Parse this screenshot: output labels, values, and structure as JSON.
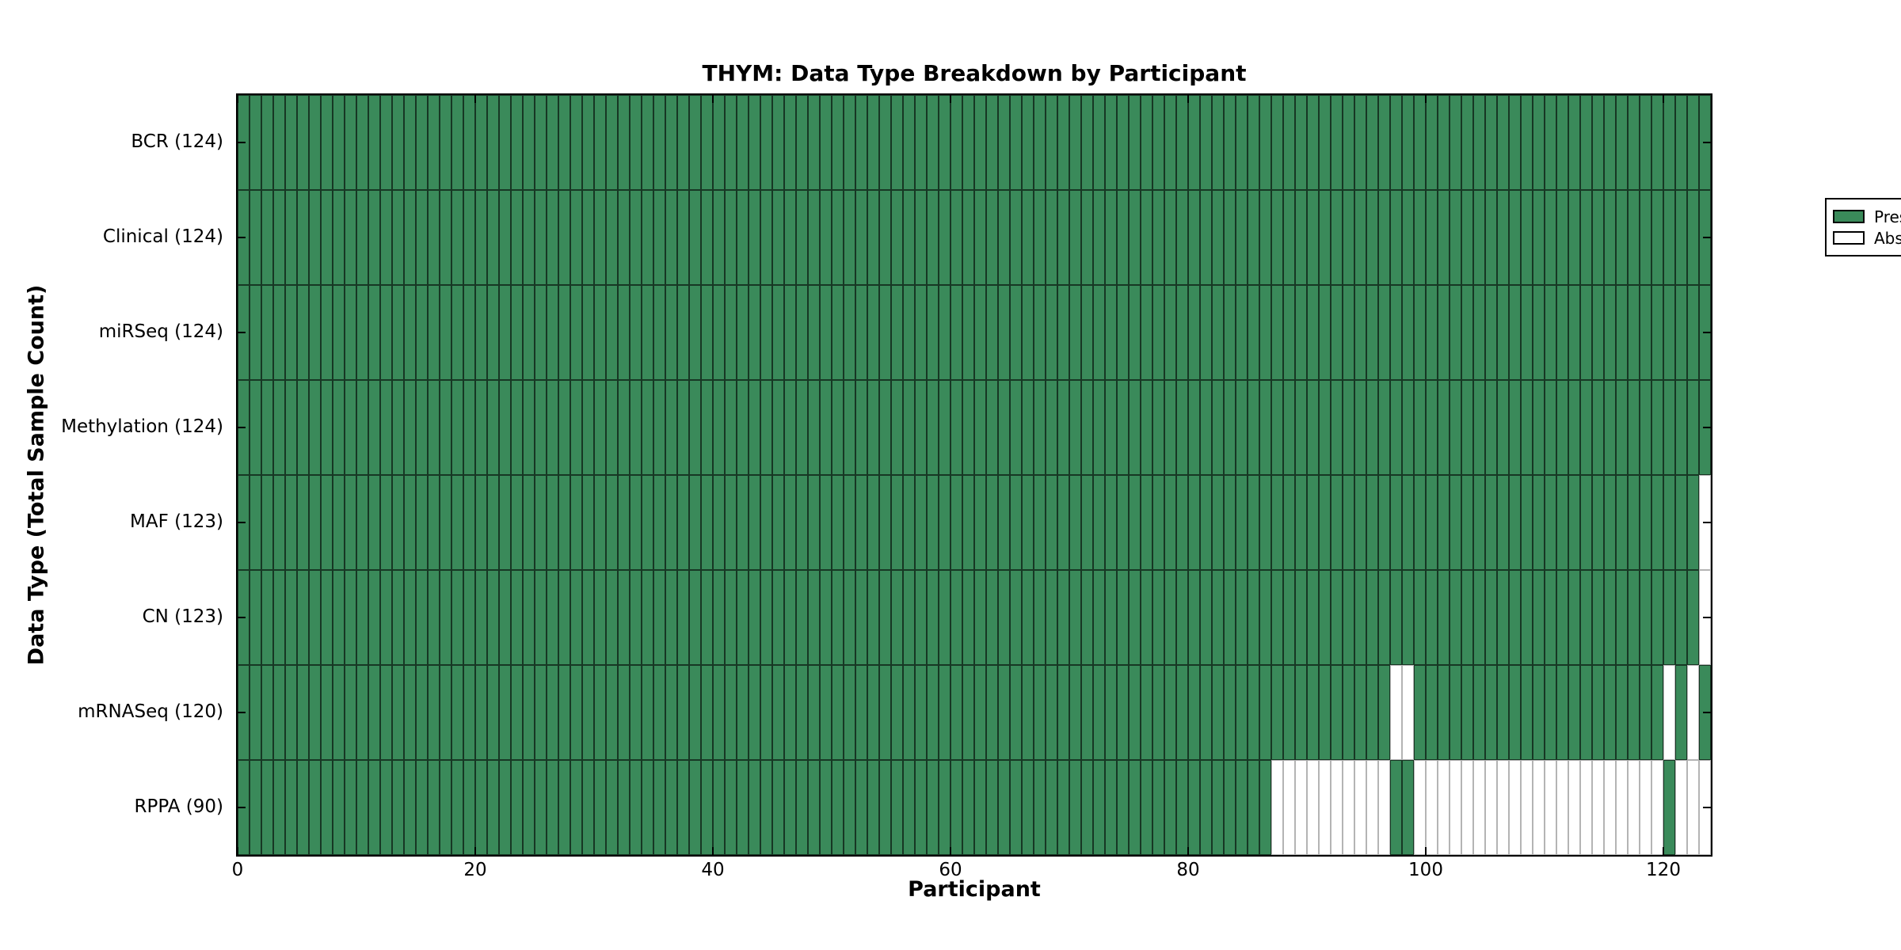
{
  "figure": {
    "background_color": "#ffffff"
  },
  "chart_data": {
    "type": "heatmap",
    "title": "THYM: Data Type Breakdown by Participant",
    "xlabel": "Participant",
    "ylabel": "Data Type (Total Sample Count)",
    "x_ticks": [
      0,
      20,
      40,
      60,
      80,
      100,
      120
    ],
    "xlim": [
      0,
      124
    ],
    "n_participants": 124,
    "grid": false,
    "tick_style": "inward-all-sides",
    "colors": {
      "present_fill": "#3a8a5a",
      "present_edge": "rgba(0,0,0,0.6)",
      "absent_fill": "#ffffff",
      "absent_edge": "#b4b4b4",
      "spine": "#000000"
    },
    "legend": {
      "position": "upper-right",
      "entries": [
        {
          "label": "Present",
          "color": "#3a8a5a"
        },
        {
          "label": "Absent",
          "color": "#ffffff"
        }
      ]
    },
    "rows": [
      {
        "label": "BCR (124)",
        "data_type": "BCR",
        "total_samples": 124,
        "absent_participants": []
      },
      {
        "label": "Clinical (124)",
        "data_type": "Clinical",
        "total_samples": 124,
        "absent_participants": []
      },
      {
        "label": "miRSeq (124)",
        "data_type": "miRSeq",
        "total_samples": 124,
        "absent_participants": []
      },
      {
        "label": "Methylation (124)",
        "data_type": "Methylation",
        "total_samples": 124,
        "absent_participants": []
      },
      {
        "label": "MAF (123)",
        "data_type": "MAF",
        "total_samples": 123,
        "absent_participants": [
          123
        ]
      },
      {
        "label": "CN (123)",
        "data_type": "CN",
        "total_samples": 123,
        "absent_participants": [
          123
        ]
      },
      {
        "label": "mRNASeq (120)",
        "data_type": "mRNASeq",
        "total_samples": 120,
        "absent_participants": [
          97,
          98,
          120,
          122
        ]
      },
      {
        "label": "RPPA (90)",
        "data_type": "RPPA",
        "total_samples": 90,
        "absent_participants": [
          87,
          88,
          89,
          90,
          91,
          92,
          93,
          94,
          95,
          96,
          99,
          100,
          101,
          102,
          103,
          104,
          105,
          106,
          107,
          108,
          109,
          110,
          111,
          112,
          113,
          114,
          115,
          116,
          117,
          118,
          119,
          121,
          122,
          123
        ]
      }
    ]
  }
}
